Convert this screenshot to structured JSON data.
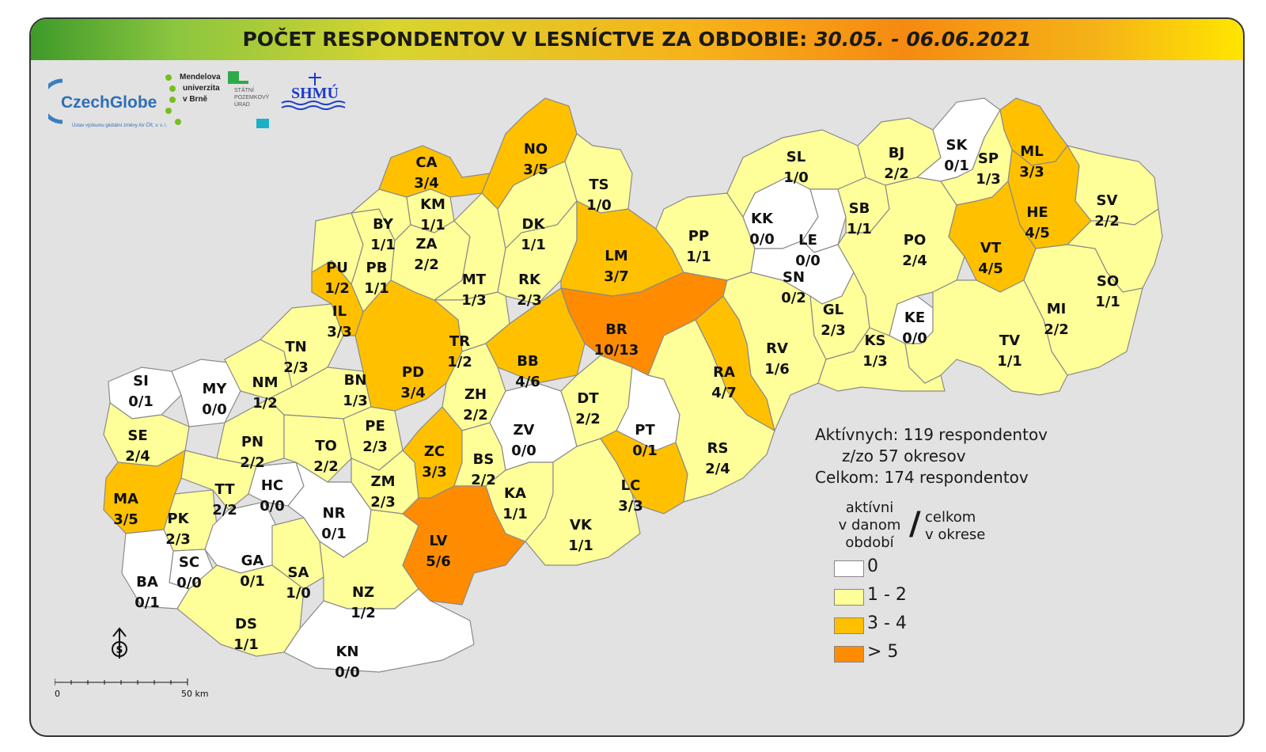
{
  "title": {
    "main": "POČET RESPONDENTOV V LESNÍCTVE ZA OBDOBIE:",
    "dates": "30.05. - 06.06.2021"
  },
  "logos": {
    "czechglobe": "CzechGlobe",
    "czechglobe_sub": "Ústav výzkumu globální změny AV ČR, v. v. i.",
    "mendel": [
      "Mendelova",
      "univerzita",
      "v Brně"
    ],
    "spu": [
      "STÁTNÍ",
      "POZEMKOVÝ",
      "ÚRAD"
    ],
    "shmu": "SHMÚ"
  },
  "colors": {
    "class_0": "#ffffff",
    "class_1_2": "#ffff99",
    "class_3_4": "#ffc000",
    "class_gt5": "#ff8c00",
    "background": "#e2e2e2",
    "border": "#8a8a8a"
  },
  "districts": [
    {
      "code": "SI",
      "value": "0/1",
      "cls": "0"
    },
    {
      "code": "MY",
      "value": "0/0",
      "cls": "0"
    },
    {
      "code": "SE",
      "value": "2/4",
      "cls": "1"
    },
    {
      "code": "MA",
      "value": "3/5",
      "cls": "3"
    },
    {
      "code": "PK",
      "value": "2/3",
      "cls": "1"
    },
    {
      "code": "SC",
      "value": "0/0",
      "cls": "0"
    },
    {
      "code": "BA",
      "value": "0/1",
      "cls": "0"
    },
    {
      "code": "NM",
      "value": "1/2",
      "cls": "1"
    },
    {
      "code": "PN",
      "value": "2/2",
      "cls": "1"
    },
    {
      "code": "TT",
      "value": "2/2",
      "cls": "1"
    },
    {
      "code": "HC",
      "value": "0/0",
      "cls": "0"
    },
    {
      "code": "GA",
      "value": "0/1",
      "cls": "0"
    },
    {
      "code": "SA",
      "value": "1/0",
      "cls": "1"
    },
    {
      "code": "DS",
      "value": "1/1",
      "cls": "1"
    },
    {
      "code": "TN",
      "value": "2/3",
      "cls": "1"
    },
    {
      "code": "BN",
      "value": "1/3",
      "cls": "1"
    },
    {
      "code": "TO",
      "value": "2/2",
      "cls": "1"
    },
    {
      "code": "NR",
      "value": "0/1",
      "cls": "0"
    },
    {
      "code": "PE",
      "value": "2/3",
      "cls": "1"
    },
    {
      "code": "ZM",
      "value": "2/3",
      "cls": "1"
    },
    {
      "code": "NZ",
      "value": "1/2",
      "cls": "1"
    },
    {
      "code": "KN",
      "value": "0/0",
      "cls": "0"
    },
    {
      "code": "IL",
      "value": "3/3",
      "cls": "3"
    },
    {
      "code": "PU",
      "value": "1/2",
      "cls": "1"
    },
    {
      "code": "PB",
      "value": "1/1",
      "cls": "1"
    },
    {
      "code": "BY",
      "value": "1/1",
      "cls": "1"
    },
    {
      "code": "CA",
      "value": "3/4",
      "cls": "3"
    },
    {
      "code": "KM",
      "value": "1/1",
      "cls": "1"
    },
    {
      "code": "ZA",
      "value": "2/2",
      "cls": "1"
    },
    {
      "code": "MT",
      "value": "1/3",
      "cls": "1"
    },
    {
      "code": "NO",
      "value": "3/5",
      "cls": "3"
    },
    {
      "code": "DK",
      "value": "1/1",
      "cls": "1"
    },
    {
      "code": "TS",
      "value": "1/0",
      "cls": "1"
    },
    {
      "code": "RK",
      "value": "2/3",
      "cls": "1"
    },
    {
      "code": "LM",
      "value": "3/7",
      "cls": "3"
    },
    {
      "code": "PD",
      "value": "3/4",
      "cls": "3"
    },
    {
      "code": "TR",
      "value": "1/2",
      "cls": "1"
    },
    {
      "code": "BB",
      "value": "4/6",
      "cls": "3"
    },
    {
      "code": "BR",
      "value": "10/13",
      "cls": "5"
    },
    {
      "code": "ZH",
      "value": "2/2",
      "cls": "1"
    },
    {
      "code": "ZC",
      "value": "3/3",
      "cls": "3"
    },
    {
      "code": "BS",
      "value": "2/2",
      "cls": "1"
    },
    {
      "code": "ZV",
      "value": "0/0",
      "cls": "0"
    },
    {
      "code": "DT",
      "value": "2/2",
      "cls": "1"
    },
    {
      "code": "PT",
      "value": "0/1",
      "cls": "0"
    },
    {
      "code": "LV",
      "value": "5/6",
      "cls": "5"
    },
    {
      "code": "KA",
      "value": "1/1",
      "cls": "1"
    },
    {
      "code": "VK",
      "value": "1/1",
      "cls": "1"
    },
    {
      "code": "LC",
      "value": "3/3",
      "cls": "3"
    },
    {
      "code": "RS",
      "value": "2/4",
      "cls": "1"
    },
    {
      "code": "RA",
      "value": "4/7",
      "cls": "3"
    },
    {
      "code": "RV",
      "value": "1/6",
      "cls": "1"
    },
    {
      "code": "PP",
      "value": "1/1",
      "cls": "1"
    },
    {
      "code": "KK",
      "value": "0/0",
      "cls": "0"
    },
    {
      "code": "SL",
      "value": "1/0",
      "cls": "1"
    },
    {
      "code": "LE",
      "value": "0/0",
      "cls": "0"
    },
    {
      "code": "SN",
      "value": "0/2",
      "cls": "0"
    },
    {
      "code": "GL",
      "value": "2/3",
      "cls": "1"
    },
    {
      "code": "KS",
      "value": "1/3",
      "cls": "1"
    },
    {
      "code": "KE",
      "value": "0/0",
      "cls": "0"
    },
    {
      "code": "SB",
      "value": "1/1",
      "cls": "1"
    },
    {
      "code": "BJ",
      "value": "2/2",
      "cls": "1"
    },
    {
      "code": "PO",
      "value": "2/4",
      "cls": "1"
    },
    {
      "code": "SK",
      "value": "0/1",
      "cls": "0"
    },
    {
      "code": "SP",
      "value": "1/3",
      "cls": "1"
    },
    {
      "code": "ML",
      "value": "3/3",
      "cls": "3"
    },
    {
      "code": "HE",
      "value": "4/5",
      "cls": "3"
    },
    {
      "code": "VT",
      "value": "4/5",
      "cls": "3"
    },
    {
      "code": "SV",
      "value": "2/2",
      "cls": "1"
    },
    {
      "code": "SO",
      "value": "1/1",
      "cls": "1"
    },
    {
      "code": "MI",
      "value": "2/2",
      "cls": "1"
    },
    {
      "code": "TV",
      "value": "1/1",
      "cls": "1"
    }
  ],
  "stats": {
    "active": "Aktívnych: 119 respondentov",
    "districts": "z/zo 57 okresov",
    "total": "Celkom: 174 respondentov"
  },
  "legend": {
    "left_label": [
      "aktívni",
      "v danom",
      "období"
    ],
    "slash": "/",
    "right_label": [
      "celkom",
      "v okrese"
    ],
    "items": [
      {
        "label": "0",
        "color_key": "class_0"
      },
      {
        "label": "1 - 2",
        "color_key": "class_1_2"
      },
      {
        "label": "3 - 4",
        "color_key": "class_3_4"
      },
      {
        "label": "> 5",
        "color_key": "class_gt5"
      }
    ]
  },
  "scale_bar": {
    "start": "0",
    "end": "50 km"
  },
  "north_arrow": "S"
}
